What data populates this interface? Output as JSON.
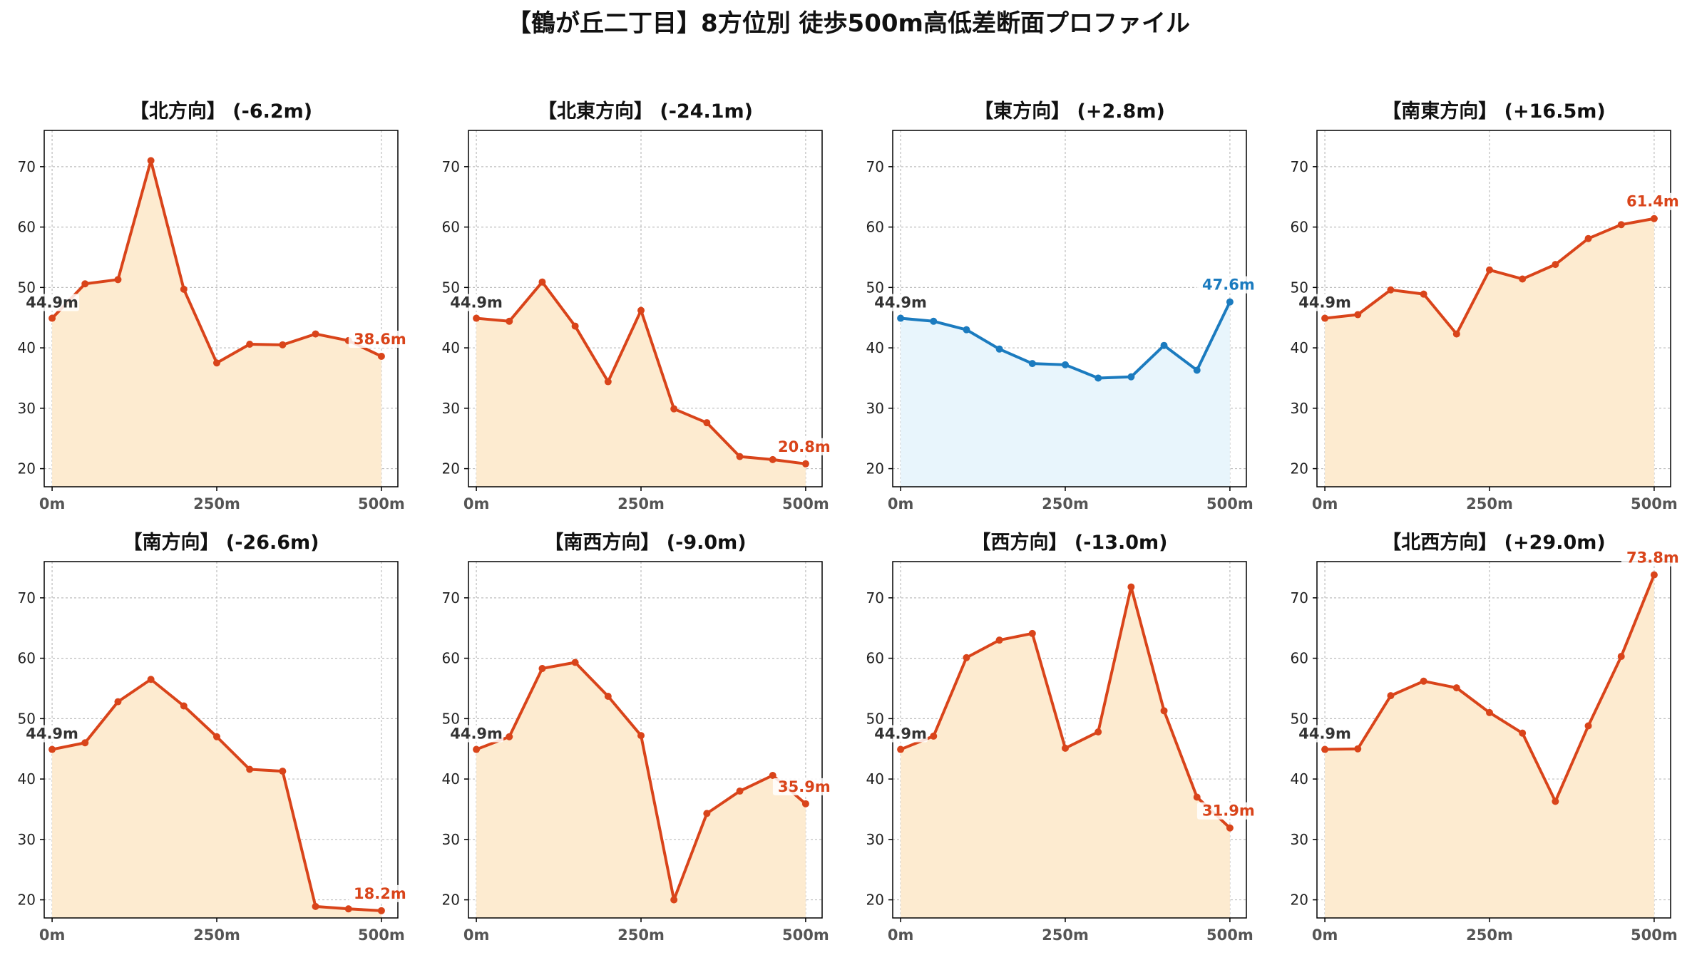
{
  "title": "【鶴が丘二丁目】8方位別 徒歩500m高低差断面プロファイル",
  "colors": {
    "down_line": "#d9441a",
    "down_fill": "#fdebd0",
    "up_line": "#1b7bbf",
    "up_fill": "#e8f5fc",
    "start_label": "#333333"
  },
  "chart_data": [
    {
      "type": "area",
      "title": "【北方向】 (-6.2m)",
      "x": [
        0,
        50,
        100,
        150,
        200,
        250,
        300,
        350,
        400,
        450,
        500
      ],
      "values": [
        44.9,
        50.6,
        51.3,
        71.0,
        49.7,
        37.5,
        40.6,
        40.5,
        42.3,
        41.2,
        38.6
      ],
      "xticks": [
        "0m",
        "250m",
        "500m"
      ],
      "ylim": [
        17,
        76
      ],
      "yticks": [
        20,
        30,
        40,
        50,
        60,
        70
      ],
      "start_label": "44.9m",
      "end_label": "38.6m",
      "grid": true
    },
    {
      "type": "area",
      "title": "【北東方向】 (-24.1m)",
      "x": [
        0,
        50,
        100,
        150,
        200,
        250,
        300,
        350,
        400,
        450,
        500
      ],
      "values": [
        44.9,
        44.4,
        50.9,
        43.6,
        34.4,
        46.2,
        29.9,
        27.6,
        22.0,
        21.5,
        20.8
      ],
      "xticks": [
        "0m",
        "250m",
        "500m"
      ],
      "ylim": [
        17,
        76
      ],
      "yticks": [
        20,
        30,
        40,
        50,
        60,
        70
      ],
      "start_label": "44.9m",
      "end_label": "20.8m",
      "grid": true
    },
    {
      "type": "area",
      "title": "【東方向】 (+2.8m)",
      "x": [
        0,
        50,
        100,
        150,
        200,
        250,
        300,
        350,
        400,
        450,
        500
      ],
      "values": [
        44.9,
        44.4,
        43.0,
        39.8,
        37.4,
        37.2,
        35.0,
        35.2,
        40.4,
        36.3,
        47.6
      ],
      "xticks": [
        "0m",
        "250m",
        "500m"
      ],
      "ylim": [
        17,
        76
      ],
      "yticks": [
        20,
        30,
        40,
        50,
        60,
        70
      ],
      "start_label": "44.9m",
      "end_label": "47.6m",
      "grid": true
    },
    {
      "type": "area",
      "title": "【南東方向】 (+16.5m)",
      "x": [
        0,
        50,
        100,
        150,
        200,
        250,
        300,
        350,
        400,
        450,
        500
      ],
      "values": [
        44.9,
        45.5,
        49.6,
        48.9,
        42.3,
        52.9,
        51.4,
        53.8,
        58.1,
        60.4,
        61.4
      ],
      "xticks": [
        "0m",
        "250m",
        "500m"
      ],
      "ylim": [
        17,
        76
      ],
      "yticks": [
        20,
        30,
        40,
        50,
        60,
        70
      ],
      "start_label": "44.9m",
      "end_label": "61.4m",
      "grid": true
    },
    {
      "type": "area",
      "title": "【南方向】 (-26.6m)",
      "x": [
        0,
        50,
        100,
        150,
        200,
        250,
        300,
        350,
        400,
        450,
        500
      ],
      "values": [
        44.9,
        46.0,
        52.8,
        56.5,
        52.1,
        47.0,
        41.6,
        41.3,
        18.9,
        18.5,
        18.2
      ],
      "xticks": [
        "0m",
        "250m",
        "500m"
      ],
      "ylim": [
        17,
        76
      ],
      "yticks": [
        20,
        30,
        40,
        50,
        60,
        70
      ],
      "start_label": "44.9m",
      "end_label": "18.2m",
      "grid": true
    },
    {
      "type": "area",
      "title": "【南西方向】 (-9.0m)",
      "x": [
        0,
        50,
        100,
        150,
        200,
        250,
        300,
        350,
        400,
        450,
        500
      ],
      "values": [
        44.9,
        47.0,
        58.3,
        59.3,
        53.7,
        47.2,
        20.0,
        34.3,
        38.0,
        40.6,
        35.9
      ],
      "xticks": [
        "0m",
        "250m",
        "500m"
      ],
      "ylim": [
        17,
        76
      ],
      "yticks": [
        20,
        30,
        40,
        50,
        60,
        70
      ],
      "start_label": "44.9m",
      "end_label": "35.9m",
      "grid": true
    },
    {
      "type": "area",
      "title": "【西方向】 (-13.0m)",
      "x": [
        0,
        50,
        100,
        150,
        200,
        250,
        300,
        350,
        400,
        450,
        500
      ],
      "values": [
        44.9,
        47.1,
        60.1,
        63.0,
        64.1,
        45.1,
        47.8,
        71.8,
        51.3,
        37.0,
        31.9
      ],
      "xticks": [
        "0m",
        "250m",
        "500m"
      ],
      "ylim": [
        17,
        76
      ],
      "yticks": [
        20,
        30,
        40,
        50,
        60,
        70
      ],
      "start_label": "44.9m",
      "end_label": "31.9m",
      "grid": true
    },
    {
      "type": "area",
      "title": "【北西方向】 (+29.0m)",
      "x": [
        0,
        50,
        100,
        150,
        200,
        250,
        300,
        350,
        400,
        450,
        500
      ],
      "values": [
        44.9,
        45.0,
        53.8,
        56.2,
        55.1,
        51.0,
        47.6,
        36.3,
        48.8,
        60.3,
        73.8
      ],
      "xticks": [
        "0m",
        "250m",
        "500m"
      ],
      "ylim": [
        17,
        76
      ],
      "yticks": [
        20,
        30,
        40,
        50,
        60,
        70
      ],
      "start_label": "44.9m",
      "end_label": "73.8m",
      "grid": true
    }
  ]
}
